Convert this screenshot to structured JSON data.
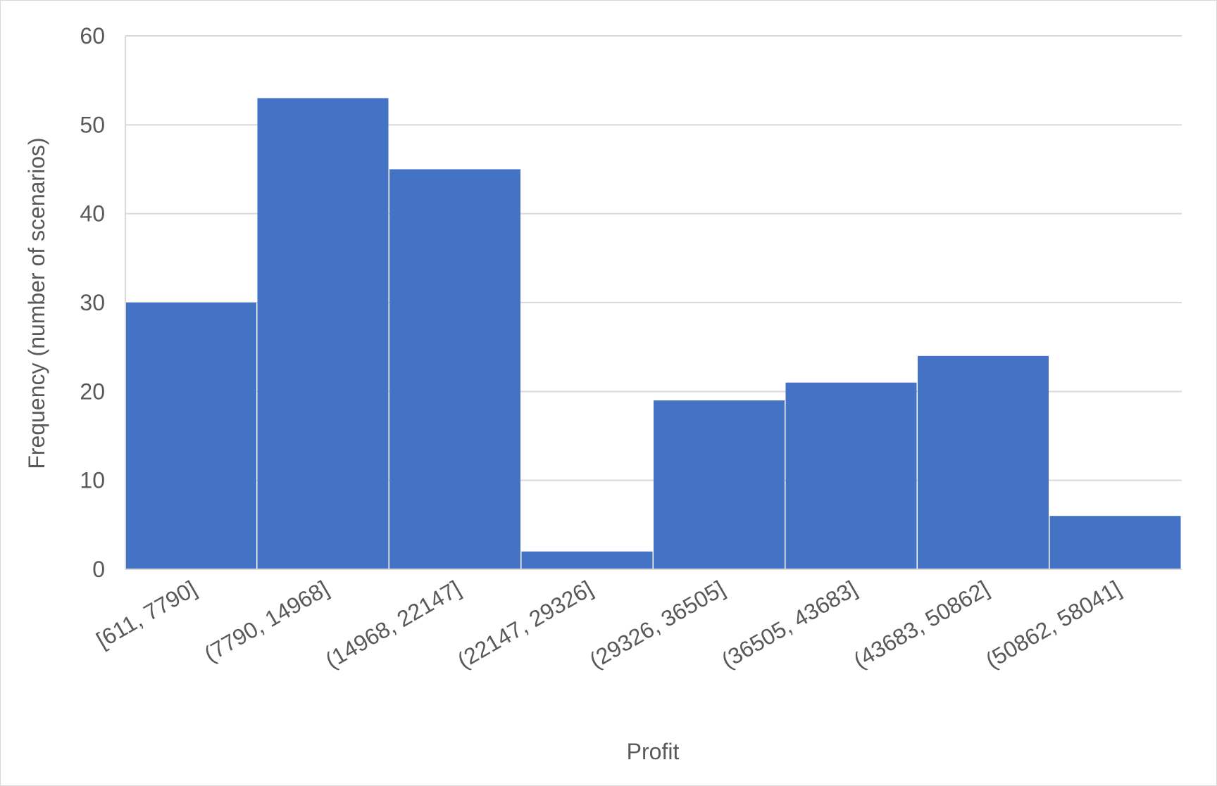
{
  "chart_data": {
    "type": "bar",
    "title": "",
    "xlabel": "Profit",
    "ylabel": "Frequency (number of scenarios)",
    "categories": [
      "[611, 7790]",
      "(7790, 14968]",
      "(14968, 22147]",
      "(22147, 29326]",
      "(29326, 36505]",
      "(36505, 43683]",
      "(43683, 50862]",
      "(50862, 58041]"
    ],
    "values": [
      30,
      53,
      45,
      2,
      19,
      21,
      24,
      6
    ],
    "ylim": [
      0,
      60
    ],
    "yticks": [
      0,
      10,
      20,
      30,
      40,
      50,
      60
    ],
    "grid": true,
    "legend": "none",
    "bar_color": "#4472C4",
    "grid_color": "#d9d9d9",
    "text_color": "#595959"
  }
}
